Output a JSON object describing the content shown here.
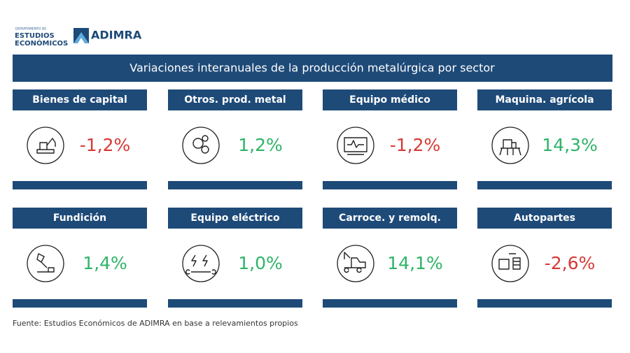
{
  "header": {
    "department_small": "DEPARTAMENTO DE",
    "department_line1": "ESTUDIOS",
    "department_line2": "ECONÓMICOS",
    "brand": "ADIMRA"
  },
  "title": "Variaciones interanuales de la producción metalúrgica por sector",
  "cards": [
    {
      "label": "Bienes de capital",
      "value": "-1,2%",
      "color": "#d63a35"
    },
    {
      "label": "Otros. prod. metal",
      "value": "1,2%",
      "color": "#2fb467"
    },
    {
      "label": "Equipo médico",
      "value": "-1,2%",
      "color": "#d63a35"
    },
    {
      "label": "Maquina. agrícola",
      "value": "14,3%",
      "color": "#2fb467"
    },
    {
      "label": "Fundición",
      "value": "1,4%",
      "color": "#2fb467"
    },
    {
      "label": "Equipo eléctrico",
      "value": "1,0%",
      "color": "#2fb467"
    },
    {
      "label": "Carroce. y remolq.",
      "value": "14,1%",
      "color": "#2fb467"
    },
    {
      "label": "Autopartes",
      "value": "-2,6%",
      "color": "#d63a35"
    }
  ],
  "footer": "Fuente: Estudios Económicos de ADIMRA en base a relevamientos propios"
}
